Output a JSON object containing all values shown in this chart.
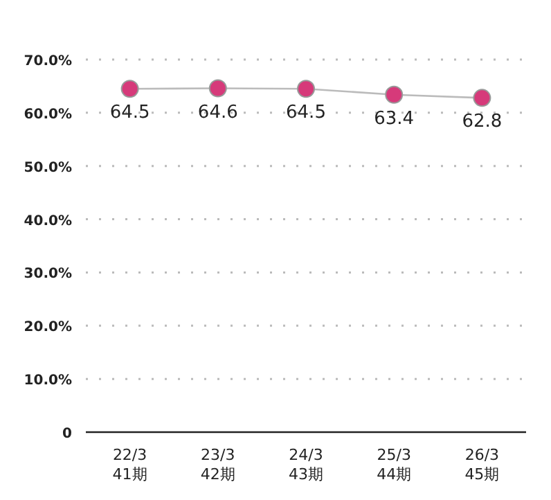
{
  "chart_data": {
    "type": "line",
    "categories": [
      "22/3\n41期",
      "23/3\n42期",
      "24/3\n43期",
      "25/3\n44期",
      "26/3\n45期"
    ],
    "series": [
      {
        "color": "#d63a7a",
        "values": [
          64.5,
          64.6,
          64.5,
          63.4,
          62.8
        ]
      }
    ],
    "ylim": [
      0,
      70
    ],
    "yticks": [
      {
        "value": 0,
        "label": "0"
      },
      {
        "value": 10,
        "label": "10.0%"
      },
      {
        "value": 20,
        "label": "20.0%"
      },
      {
        "value": 30,
        "label": "30.0%"
      },
      {
        "value": 40,
        "label": "40.0%"
      },
      {
        "value": 50,
        "label": "50.0%"
      },
      {
        "value": 60,
        "label": "60.0%"
      },
      {
        "value": 70,
        "label": "70.0%"
      }
    ],
    "grid": "y",
    "marker": "circle",
    "data_labels": true
  }
}
